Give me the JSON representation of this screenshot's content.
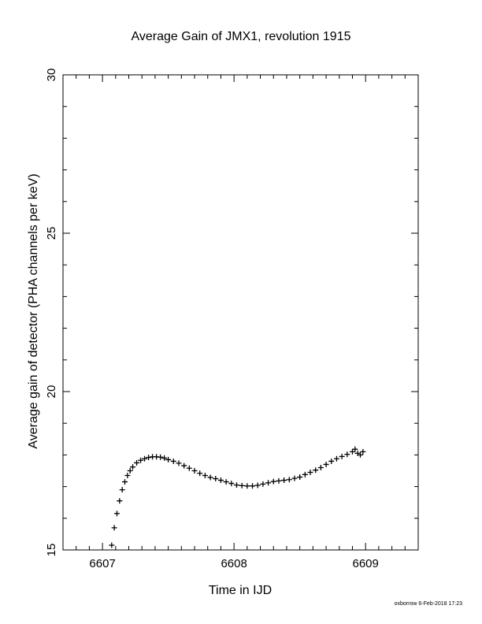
{
  "chart_data": {
    "type": "scatter",
    "title": "Average Gain of JMX1, revolution 1915",
    "xlabel": "Time in IJD",
    "ylabel": "Average gain of detector (PHA channels per keV)",
    "xlim": [
      6606.7,
      6609.4
    ],
    "ylim": [
      15,
      30
    ],
    "x_major_ticks": [
      6607,
      6608,
      6609
    ],
    "x_tick_labels": [
      "6607",
      "6608",
      "6609"
    ],
    "x_minor_step": 0.1,
    "y_major_ticks": [
      15,
      20,
      25,
      30
    ],
    "y_tick_labels": [
      "15",
      "20",
      "25",
      "30"
    ],
    "y_minor_step": 1,
    "grid": false,
    "marker": "plus",
    "series": [
      {
        "color": "#000000",
        "x": [
          6607.07,
          6607.09,
          6607.11,
          6607.13,
          6607.15,
          6607.17,
          6607.19,
          6607.21,
          6607.23,
          6607.26,
          6607.29,
          6607.32,
          6607.35,
          6607.38,
          6607.41,
          6607.44,
          6607.47,
          6607.5,
          6607.54,
          6607.58,
          6607.62,
          6607.66,
          6607.7,
          6607.74,
          6607.78,
          6607.82,
          6607.86,
          6607.9,
          6607.94,
          6607.98,
          6608.02,
          6608.06,
          6608.1,
          6608.14,
          6608.18,
          6608.22,
          6608.26,
          6608.3,
          6608.34,
          6608.38,
          6608.42,
          6608.46,
          6608.5,
          6608.54,
          6608.58,
          6608.62,
          6608.66,
          6608.7,
          6608.74,
          6608.78,
          6608.82,
          6608.86,
          6608.9,
          6608.92,
          6608.94,
          6608.96,
          6608.98
        ],
        "y": [
          15.15,
          15.7,
          16.15,
          16.55,
          16.9,
          17.15,
          17.35,
          17.5,
          17.62,
          17.75,
          17.83,
          17.88,
          17.92,
          17.94,
          17.94,
          17.93,
          17.9,
          17.85,
          17.8,
          17.74,
          17.66,
          17.58,
          17.5,
          17.42,
          17.35,
          17.29,
          17.25,
          17.2,
          17.15,
          17.1,
          17.05,
          17.03,
          17.02,
          17.02,
          17.04,
          17.08,
          17.12,
          17.16,
          17.18,
          17.2,
          17.22,
          17.26,
          17.3,
          17.38,
          17.45,
          17.52,
          17.6,
          17.7,
          17.8,
          17.88,
          17.95,
          18.02,
          18.1,
          18.18,
          18.05,
          18.0,
          18.1
        ]
      }
    ]
  },
  "footer": {
    "stamp": "oxborrow  6-Feb-2018 17:23"
  }
}
